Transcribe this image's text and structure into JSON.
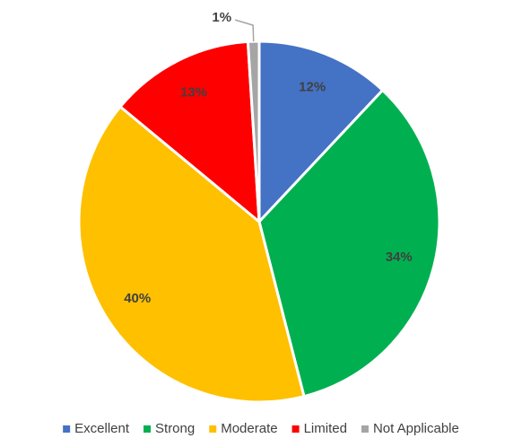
{
  "chart_data": {
    "type": "pie",
    "categories": [
      "Excellent",
      "Strong",
      "Moderate",
      "Limited",
      "Not Applicable"
    ],
    "values": [
      12,
      34,
      40,
      13,
      1
    ],
    "value_labels": [
      "12%",
      "34%",
      "40%",
      "13%",
      "1%"
    ],
    "colors": [
      "#4472c4",
      "#00b050",
      "#ffc000",
      "#ff0000",
      "#a5a5a5"
    ],
    "legend": "bottom"
  }
}
